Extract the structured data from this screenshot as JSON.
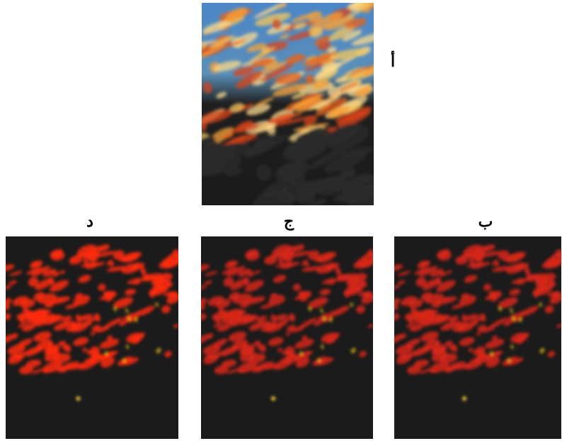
{
  "panels": [
    {
      "label": "أ"
    },
    {
      "label": "ب"
    },
    {
      "label": "ج"
    },
    {
      "label": "د"
    }
  ]
}
